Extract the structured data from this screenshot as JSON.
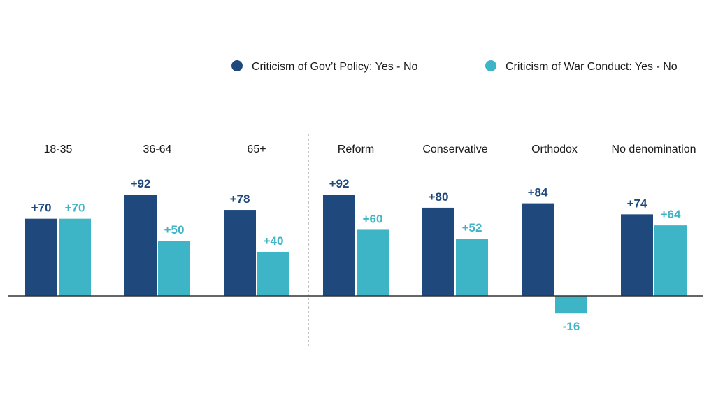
{
  "chart_data": {
    "type": "bar",
    "title": "",
    "xlabel": "",
    "ylabel": "",
    "ylim": [
      -16,
      92
    ],
    "grid": false,
    "legend_position": "top-right",
    "categories": [
      "18-35",
      "36-64",
      "65+",
      "Reform",
      "Conservative",
      "Orthodox",
      "No denomination"
    ],
    "series": [
      {
        "name": "Criticism of Gov’t Policy: Yes - No",
        "color": "#1f497d",
        "values": [
          70,
          92,
          78,
          92,
          80,
          84,
          74
        ],
        "labels": [
          "+70",
          "+92",
          "+78",
          "+92",
          "+80",
          "+84",
          "+74"
        ]
      },
      {
        "name": "Criticism of War Conduct: Yes - No",
        "color": "#3db5c7",
        "values": [
          70,
          50,
          40,
          60,
          52,
          -16,
          64
        ],
        "labels": [
          "+70",
          "+50",
          "+40",
          "+60",
          "+52",
          "-16",
          "+64"
        ]
      }
    ],
    "group_divider_after_category": 2
  }
}
